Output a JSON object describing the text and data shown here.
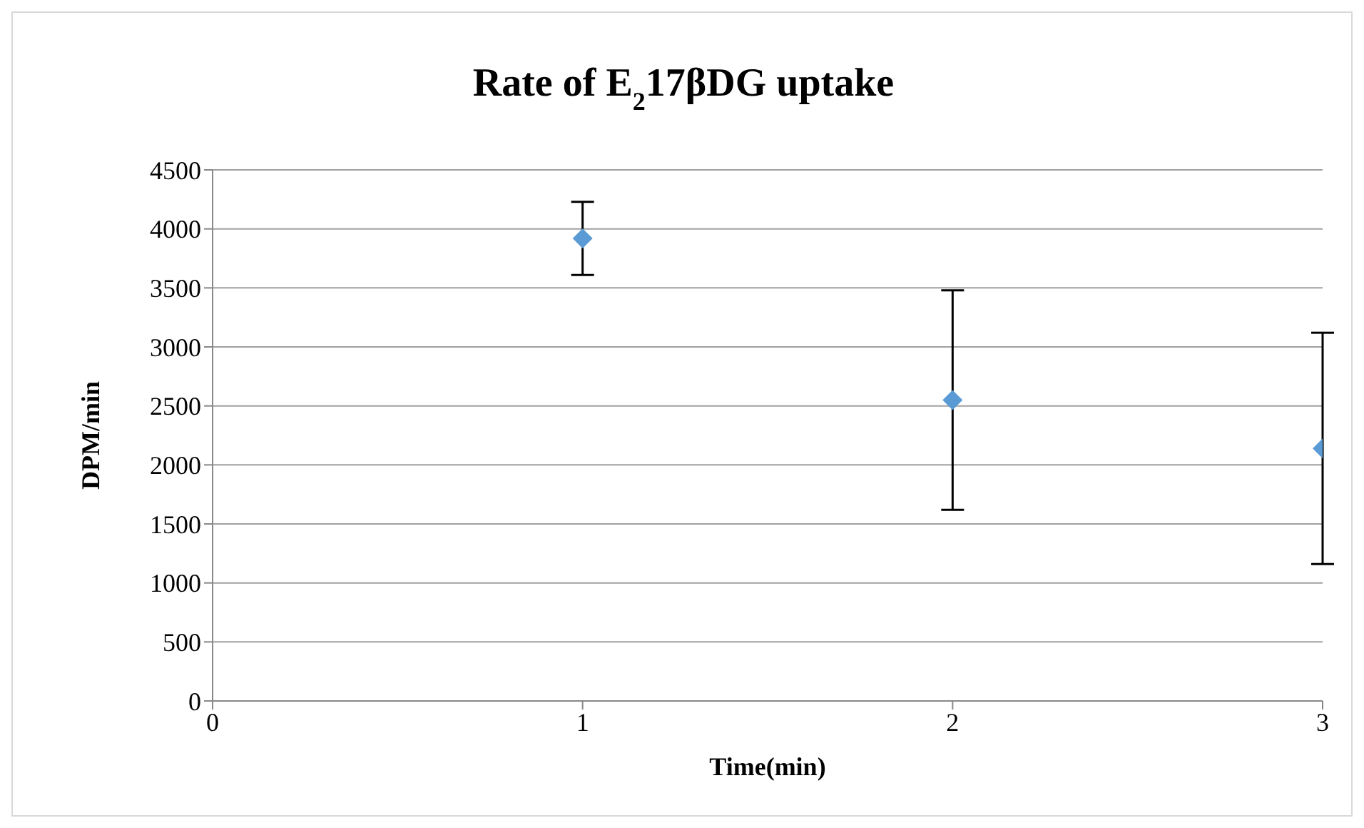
{
  "chart_data": {
    "type": "scatter",
    "title": "Rate of E$_{2}$17βDG uptake",
    "xlabel": "Time(min)",
    "ylabel": "DPM/min",
    "x": [
      1,
      2,
      3
    ],
    "series": [
      {
        "color": "#5b9bd5",
        "values": [
          3920,
          2550,
          2140
        ],
        "errors": [
          310,
          930,
          980
        ]
      }
    ],
    "xlim": [
      0,
      3
    ],
    "xticks": [
      0,
      1,
      2,
      3
    ],
    "ylim": [
      0,
      4500
    ],
    "yticks": [
      0,
      500,
      1000,
      1500,
      2000,
      2500,
      3000,
      3500,
      4000,
      4500
    ],
    "grid": "y",
    "marker": "diamond"
  }
}
